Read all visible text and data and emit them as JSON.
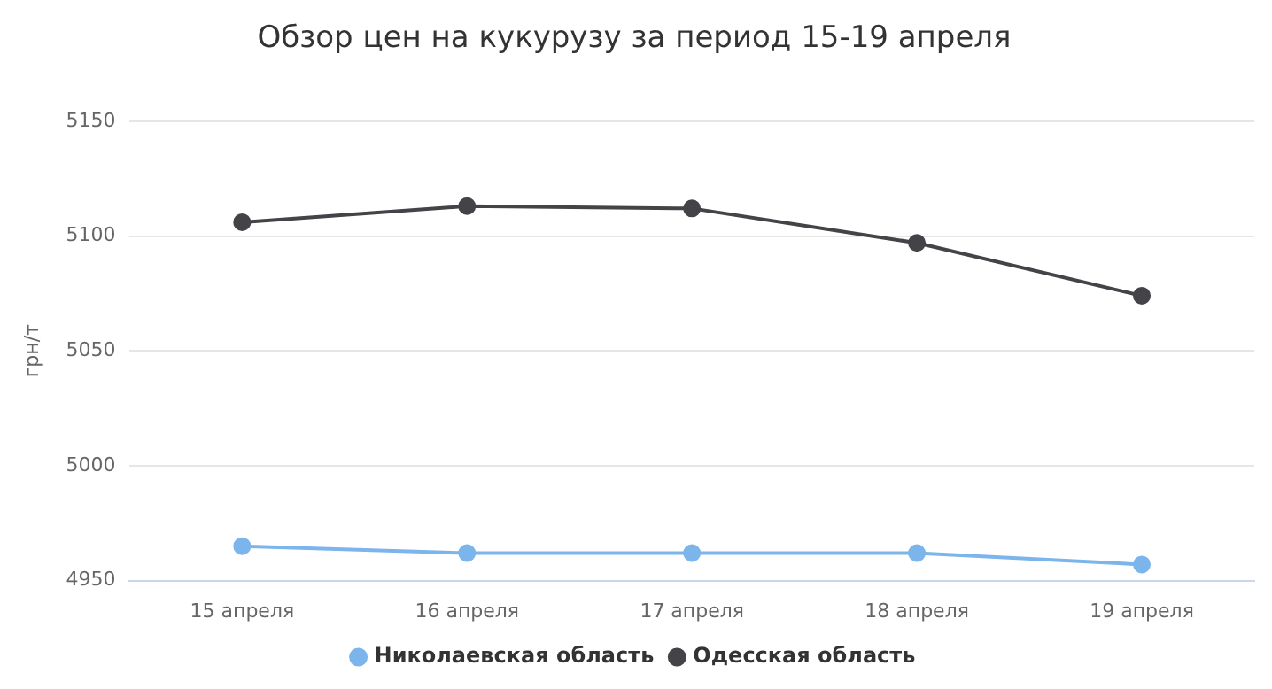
{
  "chart_data": {
    "type": "line",
    "title": "Обзор цен на кукурузу за период 15-19 апреля",
    "ylabel": "грн/т",
    "categories": [
      "15 апреля",
      "16 апреля",
      "17 апреля",
      "18 апреля",
      "19 апреля"
    ],
    "series": [
      {
        "name": "Николаевская область",
        "color": "#7cb5ec",
        "values": [
          4965,
          4962,
          4962,
          4962,
          4957
        ]
      },
      {
        "name": "Одесская область",
        "color": "#434348",
        "values": [
          5106,
          5113,
          5112,
          5097,
          5074
        ]
      }
    ],
    "ylim": [
      4950,
      5150
    ],
    "yticks": [
      4950,
      5000,
      5050,
      5100,
      5150
    ],
    "grid": "y",
    "legend": "bottom",
    "marker": "circle",
    "line_style": "solid"
  }
}
